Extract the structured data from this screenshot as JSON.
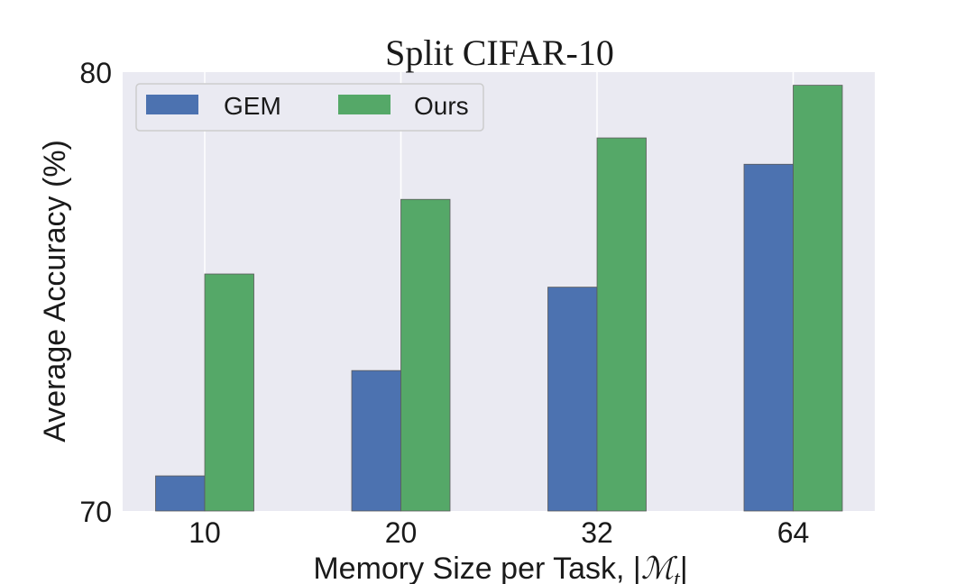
{
  "chart_data": {
    "type": "bar",
    "title": "Split CIFAR-10",
    "xlabel": "Memory Size per Task, |",
    "xlabel_symbol": "ℳ",
    "xlabel_subscript": "t",
    "xlabel_end": "|",
    "ylabel": "Average Accuracy (%)",
    "categories": [
      "10",
      "20",
      "32",
      "64"
    ],
    "series": [
      {
        "name": "GEM",
        "color": "#4c72b0",
        "values": [
          70.8,
          73.2,
          75.1,
          77.9
        ]
      },
      {
        "name": "Ours",
        "color": "#55a868",
        "values": [
          75.4,
          77.1,
          78.5,
          79.7
        ]
      }
    ],
    "ylim": [
      70,
      80
    ],
    "yticks": [
      "70",
      "80"
    ],
    "grid": true,
    "legend_position": "top-left",
    "background": "#eaeaf2"
  }
}
